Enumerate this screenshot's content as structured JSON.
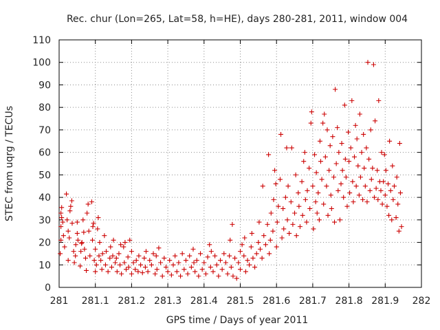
{
  "chart_data": {
    "type": "scatter",
    "title": "Rec. chur (Lon=265, Lat=58, h=HE), days 280-281, 2011, window 004",
    "xlabel": "GPS time / Days of year 2011",
    "ylabel": "STEC from uqrg / TECUs",
    "xlim": [
      281,
      282
    ],
    "ylim": [
      0,
      110
    ],
    "xticks": [
      "281",
      "281.1",
      "281.2",
      "281.3",
      "281.4",
      "281.5",
      "281.6",
      "281.7",
      "281.8",
      "281.9",
      "282"
    ],
    "yticks": [
      "0",
      "10",
      "20",
      "30",
      "40",
      "50",
      "60",
      "70",
      "80",
      "90",
      "100",
      "110"
    ],
    "grid": true,
    "marker": "+",
    "color": "#cc0000",
    "series": [
      {
        "points": [
          [
            281.003,
            15
          ],
          [
            281.005,
            21
          ],
          [
            281.005,
            27
          ],
          [
            281.005,
            33
          ],
          [
            281.007,
            35.5
          ],
          [
            281.007,
            31
          ],
          [
            281.01,
            29
          ],
          [
            281.012,
            23
          ],
          [
            281.015,
            18
          ],
          [
            281.02,
            41.5
          ],
          [
            281.022,
            30
          ],
          [
            281.025,
            25
          ],
          [
            281.025,
            12
          ],
          [
            281.028,
            22
          ],
          [
            281.03,
            34
          ],
          [
            281.032,
            36
          ],
          [
            281.035,
            38.5
          ],
          [
            281.036,
            28.5
          ],
          [
            281.04,
            16
          ],
          [
            281.042,
            11
          ],
          [
            281.045,
            14
          ],
          [
            281.046,
            19
          ],
          [
            281.05,
            24
          ],
          [
            281.05,
            29
          ],
          [
            281.052,
            21
          ],
          [
            281.058,
            9.5
          ],
          [
            281.06,
            16
          ],
          [
            281.062,
            19.5
          ],
          [
            281.063,
            20
          ],
          [
            281.066,
            30
          ],
          [
            281.068,
            24.5
          ],
          [
            281.07,
            17
          ],
          [
            281.073,
            13
          ],
          [
            281.075,
            7.5
          ],
          [
            281.077,
            33
          ],
          [
            281.08,
            37
          ],
          [
            281.082,
            25
          ],
          [
            281.085,
            14
          ],
          [
            281.09,
            38
          ],
          [
            281.092,
            21
          ],
          [
            281.093,
            27
          ],
          [
            281.095,
            28.5
          ],
          [
            281.097,
            12
          ],
          [
            281.1,
            17
          ],
          [
            281.1,
            7
          ],
          [
            281.103,
            10
          ],
          [
            281.106,
            26
          ],
          [
            281.108,
            31
          ],
          [
            281.11,
            14
          ],
          [
            281.112,
            20
          ],
          [
            281.115,
            12
          ],
          [
            281.118,
            8
          ],
          [
            281.12,
            15
          ],
          [
            281.125,
            23
          ],
          [
            281.128,
            10
          ],
          [
            281.13,
            16
          ],
          [
            281.135,
            7
          ],
          [
            281.14,
            13
          ],
          [
            281.142,
            18
          ],
          [
            281.145,
            9
          ],
          [
            281.148,
            14
          ],
          [
            281.15,
            21
          ],
          [
            281.155,
            11
          ],
          [
            281.158,
            13
          ],
          [
            281.16,
            7
          ],
          [
            281.165,
            15
          ],
          [
            281.168,
            10
          ],
          [
            281.17,
            19
          ],
          [
            281.172,
            6
          ],
          [
            281.178,
            18
          ],
          [
            281.18,
            11
          ],
          [
            281.182,
            20
          ],
          [
            281.185,
            8
          ],
          [
            281.19,
            13.5
          ],
          [
            281.192,
            9
          ],
          [
            281.195,
            21
          ],
          [
            281.2,
            6
          ],
          [
            281.2,
            16
          ],
          [
            281.205,
            11
          ],
          [
            281.21,
            8
          ],
          [
            281.213,
            12
          ],
          [
            281.218,
            7
          ],
          [
            281.22,
            14
          ],
          [
            281.225,
            10
          ],
          [
            281.23,
            6.5
          ],
          [
            281.235,
            13
          ],
          [
            281.238,
            9
          ],
          [
            281.24,
            16
          ],
          [
            281.245,
            7
          ],
          [
            281.25,
            12
          ],
          [
            281.255,
            10
          ],
          [
            281.26,
            15
          ],
          [
            281.265,
            6
          ],
          [
            281.268,
            14
          ],
          [
            281.27,
            8
          ],
          [
            281.275,
            17.5
          ],
          [
            281.28,
            11
          ],
          [
            281.285,
            5
          ],
          [
            281.29,
            13
          ],
          [
            281.295,
            9
          ],
          [
            281.3,
            7
          ],
          [
            281.305,
            12
          ],
          [
            281.31,
            5.5
          ],
          [
            281.315,
            10
          ],
          [
            281.32,
            14
          ],
          [
            281.325,
            7
          ],
          [
            281.33,
            11
          ],
          [
            281.335,
            5
          ],
          [
            281.34,
            15
          ],
          [
            281.345,
            8
          ],
          [
            281.35,
            12
          ],
          [
            281.355,
            6
          ],
          [
            281.36,
            14
          ],
          [
            281.365,
            9
          ],
          [
            281.37,
            17
          ],
          [
            281.372,
            11
          ],
          [
            281.375,
            7
          ],
          [
            281.38,
            12
          ],
          [
            281.385,
            5
          ],
          [
            281.39,
            15
          ],
          [
            281.395,
            8
          ],
          [
            281.4,
            11
          ],
          [
            281.405,
            6
          ],
          [
            281.41,
            13.5
          ],
          [
            281.415,
            19
          ],
          [
            281.418,
            9
          ],
          [
            281.42,
            16
          ],
          [
            281.425,
            7
          ],
          [
            281.43,
            14
          ],
          [
            281.435,
            10
          ],
          [
            281.44,
            5
          ],
          [
            281.445,
            12
          ],
          [
            281.45,
            8
          ],
          [
            281.455,
            15
          ],
          [
            281.46,
            11
          ],
          [
            281.465,
            6
          ],
          [
            281.47,
            14
          ],
          [
            281.472,
            21
          ],
          [
            281.475,
            9
          ],
          [
            281.478,
            28
          ],
          [
            281.48,
            5
          ],
          [
            281.485,
            13
          ],
          [
            281.49,
            4
          ],
          [
            281.495,
            11
          ],
          [
            281.5,
            8
          ],
          [
            281.5,
            16
          ],
          [
            281.505,
            19
          ],
          [
            281.51,
            14
          ],
          [
            281.512,
            22
          ],
          [
            281.515,
            7
          ],
          [
            281.52,
            12
          ],
          [
            281.525,
            10
          ],
          [
            281.53,
            18
          ],
          [
            281.532,
            24
          ],
          [
            281.535,
            13
          ],
          [
            281.54,
            9
          ],
          [
            281.545,
            15
          ],
          [
            281.55,
            20
          ],
          [
            281.552,
            29
          ],
          [
            281.555,
            17
          ],
          [
            281.56,
            13
          ],
          [
            281.562,
            45
          ],
          [
            281.565,
            23
          ],
          [
            281.57,
            19
          ],
          [
            281.575,
            28
          ],
          [
            281.578,
            59
          ],
          [
            281.58,
            15
          ],
          [
            281.583,
            21
          ],
          [
            281.585,
            33
          ],
          [
            281.59,
            25
          ],
          [
            281.592,
            39
          ],
          [
            281.595,
            52
          ],
          [
            281.598,
            46
          ],
          [
            281.6,
            18
          ],
          [
            281.602,
            29
          ],
          [
            281.605,
            36
          ],
          [
            281.61,
            48
          ],
          [
            281.612,
            68
          ],
          [
            281.615,
            22
          ],
          [
            281.618,
            35
          ],
          [
            281.62,
            26
          ],
          [
            281.625,
            40
          ],
          [
            281.628,
            62
          ],
          [
            281.63,
            30
          ],
          [
            281.632,
            45
          ],
          [
            281.635,
            24
          ],
          [
            281.64,
            38
          ],
          [
            281.642,
            62
          ],
          [
            281.645,
            28
          ],
          [
            281.65,
            33
          ],
          [
            281.653,
            50
          ],
          [
            281.655,
            23
          ],
          [
            281.66,
            42
          ],
          [
            281.662,
            36
          ],
          [
            281.665,
            27
          ],
          [
            281.67,
            47
          ],
          [
            281.672,
            32
          ],
          [
            281.675,
            56
          ],
          [
            281.678,
            60
          ],
          [
            281.68,
            39
          ],
          [
            281.683,
            29
          ],
          [
            281.685,
            43
          ],
          [
            281.69,
            53
          ],
          [
            281.692,
            35
          ],
          [
            281.695,
            73
          ],
          [
            281.697,
            78
          ],
          [
            281.7,
            45
          ],
          [
            281.702,
            26
          ],
          [
            281.705,
            59
          ],
          [
            281.708,
            38
          ],
          [
            281.71,
            51
          ],
          [
            281.712,
            33
          ],
          [
            281.715,
            42
          ],
          [
            281.718,
            30
          ],
          [
            281.72,
            65
          ],
          [
            281.722,
            56
          ],
          [
            281.725,
            48
          ],
          [
            281.728,
            73
          ],
          [
            281.73,
            37
          ],
          [
            281.732,
            77
          ],
          [
            281.735,
            58
          ],
          [
            281.738,
            45
          ],
          [
            281.74,
            70
          ],
          [
            281.742,
            32
          ],
          [
            281.745,
            52
          ],
          [
            281.748,
            63
          ],
          [
            281.75,
            41
          ],
          [
            281.752,
            35
          ],
          [
            281.755,
            67
          ],
          [
            281.758,
            49
          ],
          [
            281.76,
            29
          ],
          [
            281.762,
            88
          ],
          [
            281.765,
            55
          ],
          [
            281.768,
            71
          ],
          [
            281.77,
            43
          ],
          [
            281.772,
            60
          ],
          [
            281.775,
            30
          ],
          [
            281.778,
            46
          ],
          [
            281.78,
            64
          ],
          [
            281.782,
            52
          ],
          [
            281.785,
            40
          ],
          [
            281.788,
            81
          ],
          [
            281.79,
            57
          ],
          [
            281.792,
            49
          ],
          [
            281.795,
            36
          ],
          [
            281.798,
            69
          ],
          [
            281.8,
            56
          ],
          [
            281.802,
            42
          ],
          [
            281.805,
            62
          ],
          [
            281.808,
            83
          ],
          [
            281.81,
            47
          ],
          [
            281.812,
            38
          ],
          [
            281.815,
            58
          ],
          [
            281.818,
            72
          ],
          [
            281.82,
            45
          ],
          [
            281.822,
            66
          ],
          [
            281.825,
            54
          ],
          [
            281.828,
            41
          ],
          [
            281.83,
            77
          ],
          [
            281.832,
            49
          ],
          [
            281.835,
            60
          ],
          [
            281.838,
            39
          ],
          [
            281.84,
            68
          ],
          [
            281.842,
            53
          ],
          [
            281.845,
            45
          ],
          [
            281.848,
            62
          ],
          [
            281.85,
            38
          ],
          [
            281.852,
            100
          ],
          [
            281.855,
            57
          ],
          [
            281.858,
            43
          ],
          [
            281.86,
            70
          ],
          [
            281.862,
            48
          ],
          [
            281.865,
            53
          ],
          [
            281.868,
            99
          ],
          [
            281.87,
            40
          ],
          [
            281.872,
            74
          ],
          [
            281.875,
            44
          ],
          [
            281.878,
            52
          ],
          [
            281.88,
            39
          ],
          [
            281.882,
            83
          ],
          [
            281.885,
            47
          ],
          [
            281.888,
            43
          ],
          [
            281.89,
            60
          ],
          [
            281.892,
            37
          ],
          [
            281.895,
            47
          ],
          [
            281.898,
            59
          ],
          [
            281.9,
            41
          ],
          [
            281.902,
            52
          ],
          [
            281.905,
            36
          ],
          [
            281.908,
            46
          ],
          [
            281.91,
            32
          ],
          [
            281.912,
            65
          ],
          [
            281.915,
            43
          ],
          [
            281.918,
            30
          ],
          [
            281.92,
            54
          ],
          [
            281.922,
            39
          ],
          [
            281.925,
            45
          ],
          [
            281.93,
            31
          ],
          [
            281.932,
            49
          ],
          [
            281.935,
            37
          ],
          [
            281.938,
            25
          ],
          [
            281.94,
            64
          ],
          [
            281.942,
            42
          ],
          [
            281.945,
            27
          ]
        ]
      }
    ]
  }
}
